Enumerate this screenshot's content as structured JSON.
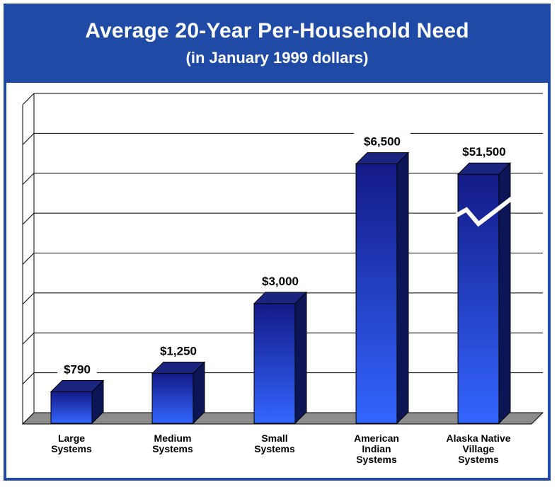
{
  "header": {
    "title": "Average 20-Year Per-Household Need",
    "subtitle": "(in January 1999 dollars)"
  },
  "colors": {
    "frame": "#1f4aa6",
    "bar_front_top": "#131a86",
    "bar_front_bottom": "#3366ff",
    "bar_side": "#0c1556",
    "bar_top": "#1a2580",
    "floor": "#8c8c8c"
  },
  "chart_data": {
    "type": "bar",
    "title": "Average 20-Year Per-Household Need",
    "subtitle": "(in January 1999 dollars)",
    "xlabel": "",
    "ylabel": "",
    "grid": true,
    "legend": "none",
    "ylim": [
      0,
      8000
    ],
    "axis_break_on": "Alaska Native Village Systems",
    "categories": [
      [
        "Large",
        "Systems"
      ],
      [
        "Medium",
        "Systems"
      ],
      [
        "Small",
        "Systems"
      ],
      [
        "American",
        "Indian",
        "Systems"
      ],
      [
        "Alaska Native",
        "Village",
        "Systems"
      ]
    ],
    "values": [
      790,
      1250,
      3000,
      6500,
      51500
    ],
    "value_labels": [
      "$790",
      "$1,250",
      "$3,000",
      "$6,500",
      "$51,500"
    ]
  }
}
